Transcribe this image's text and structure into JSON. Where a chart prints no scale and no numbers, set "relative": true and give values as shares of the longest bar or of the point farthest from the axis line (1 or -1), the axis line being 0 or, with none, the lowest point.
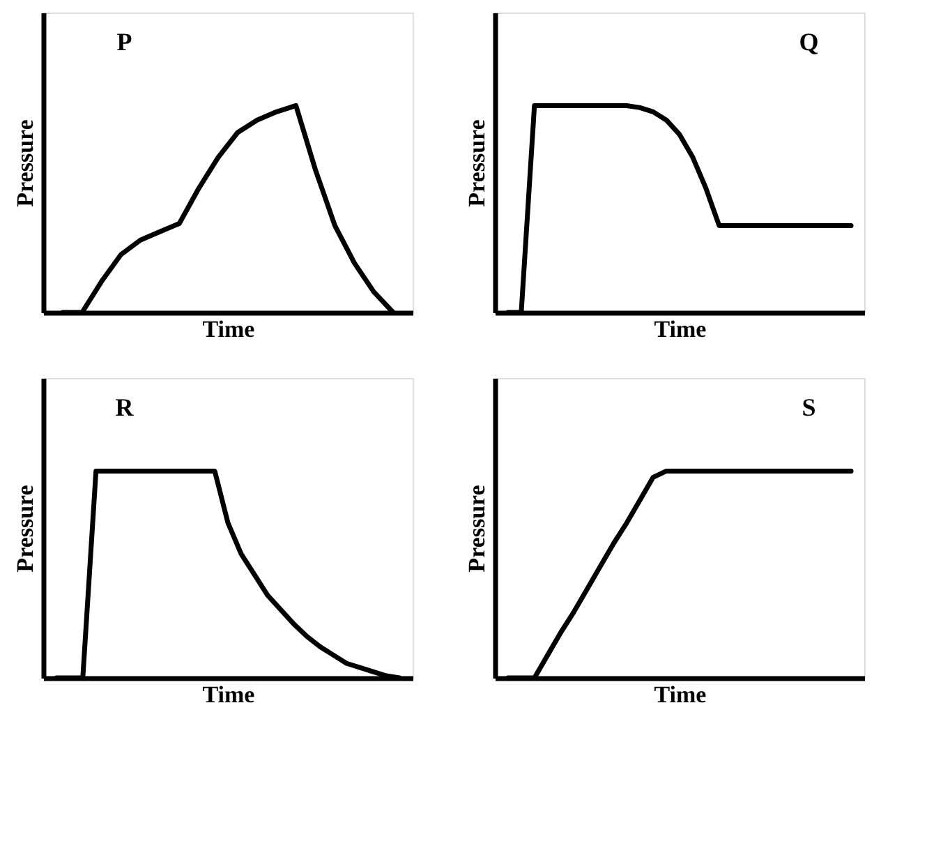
{
  "chart_data": [
    {
      "type": "line",
      "relative": true,
      "tick_labels": false,
      "xlabel": "Time",
      "ylabel": "Pressure",
      "annotations": [
        "P"
      ],
      "color": "#000000",
      "categories": [
        null,
        null,
        null,
        null,
        null,
        null,
        null,
        null,
        null,
        null,
        null,
        null,
        null,
        null,
        null,
        null,
        null,
        null
      ],
      "values": [
        0,
        0,
        0.15,
        0.28,
        0.35,
        0.39,
        0.43,
        0.6,
        0.75,
        0.87,
        0.93,
        0.97,
        1,
        0.69,
        0.42,
        0.24,
        0.1,
        0
      ]
    },
    {
      "type": "line",
      "relative": true,
      "tick_labels": false,
      "xlabel": "Time",
      "ylabel": "Pressure",
      "annotations": [
        "Q"
      ],
      "color": "#000000",
      "categories": [
        null,
        null,
        null,
        null,
        null,
        null,
        null,
        null,
        null,
        null,
        null,
        null,
        null,
        null,
        null,
        null,
        null,
        null,
        null,
        null,
        null,
        null,
        null,
        null,
        null,
        null,
        null
      ],
      "values": [
        0,
        0,
        1,
        1,
        1,
        1,
        1,
        1,
        1,
        1,
        0.99,
        0.97,
        0.93,
        0.86,
        0.75,
        0.6,
        0.42,
        0.42,
        0.42,
        0.42,
        0.42,
        0.42,
        0.42,
        0.42,
        0.42,
        0.42,
        0.42
      ]
    },
    {
      "type": "line",
      "relative": true,
      "tick_labels": false,
      "xlabel": "Time",
      "ylabel": "Pressure",
      "annotations": [
        "R"
      ],
      "color": "#000000",
      "categories": [
        null,
        null,
        null,
        null,
        null,
        null,
        null,
        null,
        null,
        null,
        null,
        null,
        null,
        null,
        null,
        null,
        null,
        null,
        null,
        null,
        null,
        null,
        null,
        null,
        null,
        null,
        null
      ],
      "values": [
        0,
        0,
        0,
        1,
        1,
        1,
        1,
        1,
        1,
        1,
        1,
        1,
        1,
        0.75,
        0.6,
        0.5,
        0.4,
        0.33,
        0.26,
        0.2,
        0.15,
        0.11,
        0.07,
        0.05,
        0.03,
        0.01,
        0
      ]
    },
    {
      "type": "line",
      "relative": true,
      "tick_labels": false,
      "xlabel": "Time",
      "ylabel": "Pressure",
      "annotations": [
        "S"
      ],
      "color": "#000000",
      "categories": [
        null,
        null,
        null,
        null,
        null,
        null,
        null,
        null,
        null,
        null,
        null,
        null,
        null,
        null,
        null,
        null,
        null,
        null,
        null,
        null,
        null,
        null,
        null,
        null,
        null,
        null,
        null
      ],
      "values": [
        0,
        0,
        0,
        0.11,
        0.22,
        0.32,
        0.43,
        0.54,
        0.65,
        0.75,
        0.86,
        0.97,
        1,
        1,
        1,
        1,
        1,
        1,
        1,
        1,
        1,
        1,
        1,
        1,
        1,
        1,
        1
      ]
    }
  ]
}
